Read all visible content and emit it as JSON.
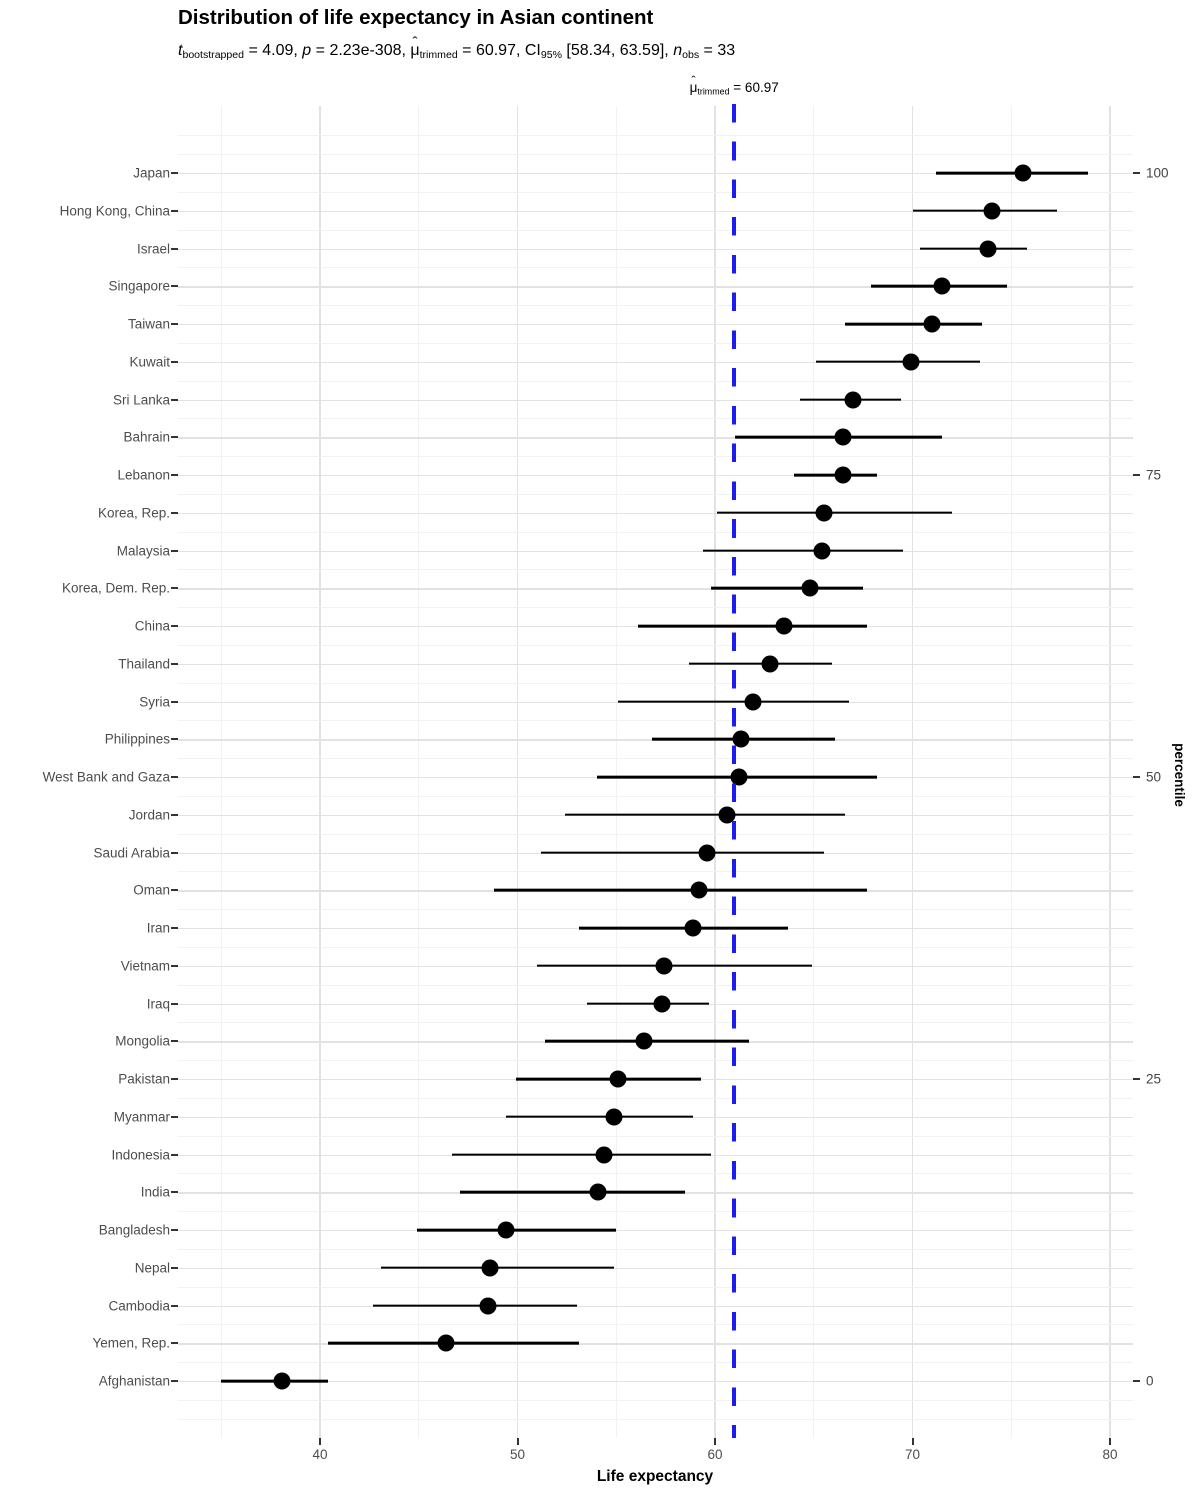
{
  "header": {
    "title": "Distribution of life expectancy in Asian continent",
    "subtitle_segments": [
      {
        "t": "t",
        "s": "i"
      },
      {
        "t": "bootstrapped",
        "s": "sub"
      },
      {
        "t": " = 4.09, ",
        "s": ""
      },
      {
        "t": "p",
        "s": "i"
      },
      {
        "t": " = 2.23e-308, ",
        "s": ""
      },
      {
        "t": "μ",
        "s": "hat"
      },
      {
        "t": "trimmed",
        "s": "sub"
      },
      {
        "t": " = 60.97, CI",
        "s": ""
      },
      {
        "t": "95%",
        "s": "sub"
      },
      {
        "t": " [58.34, 63.59], ",
        "s": ""
      },
      {
        "t": "n",
        "s": "i"
      },
      {
        "t": "obs",
        "s": "sub"
      },
      {
        "t": " = 33",
        "s": ""
      }
    ],
    "stats": {
      "t_bootstrapped": "4.09",
      "p_value": "2.23e-308",
      "mu_trimmed": "60.97",
      "ci_95": "[58.34, 63.59]",
      "n_obs": "33"
    }
  },
  "colors": {
    "accent_blue": "#1C1CF0",
    "point_black": "#000000",
    "grid_major": "#e2e2e2",
    "grid_minor": "#f2f2f2",
    "axis_text": "#4d4d4d"
  },
  "chart_data": {
    "type": "scatter",
    "title": "Distribution of life expectancy in Asian continent",
    "xlabel": "Life expectancy",
    "right_axis_label": "percentile",
    "xlim": [
      32.81,
      81.16
    ],
    "x_ticks": [
      40,
      50,
      60,
      70,
      80
    ],
    "x_minor_ticks": [
      35,
      45,
      55,
      65,
      75
    ],
    "grid": true,
    "centrality_line": {
      "value": 60.97,
      "color": "#1C1CF0",
      "label_segments": [
        {
          "t": "μ",
          "s": "hat"
        },
        {
          "t": "trimmed",
          "s": "sub"
        },
        {
          "t": " = 60.97",
          "s": ""
        }
      ]
    },
    "right_axis_ticks": [
      {
        "label": "100",
        "row_index": 0
      },
      {
        "label": "75",
        "row_index": 8
      },
      {
        "label": "50",
        "row_index": 16
      },
      {
        "label": "25",
        "row_index": 24
      },
      {
        "label": "0",
        "row_index": 32
      }
    ],
    "points": [
      {
        "country": "Japan",
        "value": 75.6,
        "ci": [
          71.2,
          78.9
        ]
      },
      {
        "country": "Hong Kong, China",
        "value": 74.0,
        "ci": [
          70.0,
          77.3
        ]
      },
      {
        "country": "Israel",
        "value": 73.8,
        "ci": [
          70.4,
          75.8
        ]
      },
      {
        "country": "Singapore",
        "value": 71.5,
        "ci": [
          67.9,
          74.8
        ]
      },
      {
        "country": "Taiwan",
        "value": 71.0,
        "ci": [
          66.6,
          73.5
        ]
      },
      {
        "country": "Kuwait",
        "value": 69.9,
        "ci": [
          65.1,
          73.4
        ]
      },
      {
        "country": "Sri Lanka",
        "value": 67.0,
        "ci": [
          64.3,
          69.4
        ]
      },
      {
        "country": "Bahrain",
        "value": 66.5,
        "ci": [
          61.0,
          71.5
        ]
      },
      {
        "country": "Lebanon",
        "value": 66.5,
        "ci": [
          64.0,
          68.2
        ]
      },
      {
        "country": "Korea, Rep.",
        "value": 65.5,
        "ci": [
          60.1,
          72.0
        ]
      },
      {
        "country": "Malaysia",
        "value": 65.4,
        "ci": [
          59.4,
          69.5
        ]
      },
      {
        "country": "Korea, Dem. Rep.",
        "value": 64.8,
        "ci": [
          59.8,
          67.5
        ]
      },
      {
        "country": "China",
        "value": 63.5,
        "ci": [
          56.1,
          67.7
        ]
      },
      {
        "country": "Thailand",
        "value": 62.8,
        "ci": [
          58.7,
          65.9
        ]
      },
      {
        "country": "Syria",
        "value": 61.9,
        "ci": [
          55.1,
          66.8
        ]
      },
      {
        "country": "Philippines",
        "value": 61.3,
        "ci": [
          56.8,
          66.1
        ]
      },
      {
        "country": "West Bank and Gaza",
        "value": 61.2,
        "ci": [
          54.0,
          68.2
        ]
      },
      {
        "country": "Jordan",
        "value": 60.6,
        "ci": [
          52.4,
          66.6
        ]
      },
      {
        "country": "Saudi Arabia",
        "value": 59.6,
        "ci": [
          51.2,
          65.5
        ]
      },
      {
        "country": "Oman",
        "value": 59.2,
        "ci": [
          48.8,
          67.7
        ]
      },
      {
        "country": "Iran",
        "value": 58.9,
        "ci": [
          53.1,
          63.7
        ]
      },
      {
        "country": "Vietnam",
        "value": 57.4,
        "ci": [
          51.0,
          64.9
        ]
      },
      {
        "country": "Iraq",
        "value": 57.3,
        "ci": [
          53.5,
          59.7
        ]
      },
      {
        "country": "Mongolia",
        "value": 56.4,
        "ci": [
          51.4,
          61.7
        ]
      },
      {
        "country": "Pakistan",
        "value": 55.1,
        "ci": [
          49.9,
          59.3
        ]
      },
      {
        "country": "Myanmar",
        "value": 54.9,
        "ci": [
          49.4,
          58.9
        ]
      },
      {
        "country": "Indonesia",
        "value": 54.4,
        "ci": [
          46.7,
          59.8
        ]
      },
      {
        "country": "India",
        "value": 54.1,
        "ci": [
          47.1,
          58.5
        ]
      },
      {
        "country": "Bangladesh",
        "value": 49.4,
        "ci": [
          44.9,
          55.0
        ]
      },
      {
        "country": "Nepal",
        "value": 48.6,
        "ci": [
          43.1,
          54.9
        ]
      },
      {
        "country": "Cambodia",
        "value": 48.5,
        "ci": [
          42.7,
          53.0
        ]
      },
      {
        "country": "Yemen, Rep.",
        "value": 46.4,
        "ci": [
          40.4,
          53.1
        ]
      },
      {
        "country": "Afghanistan",
        "value": 38.1,
        "ci": [
          35.0,
          40.4
        ]
      }
    ]
  }
}
